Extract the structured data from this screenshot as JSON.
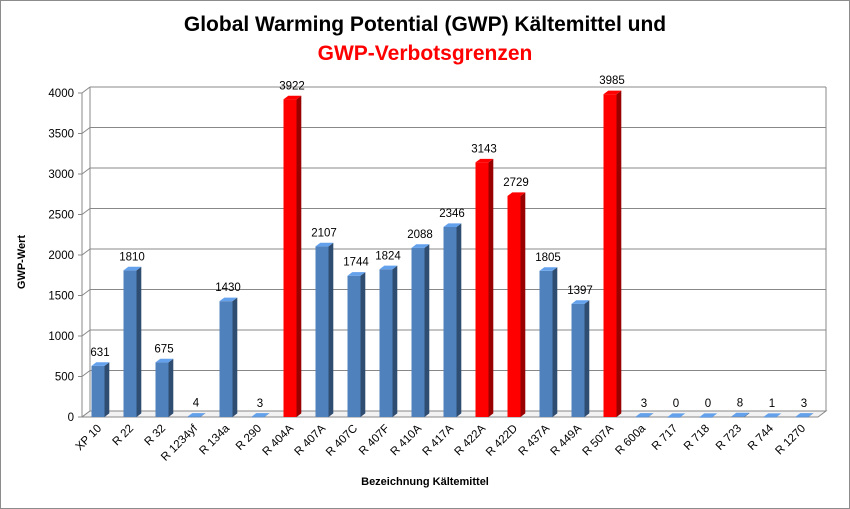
{
  "chart_data": {
    "type": "bar",
    "title": "Global Warming Potential (GWP) Kältemittel und",
    "subtitle": "GWP-Verbotsgrenzen",
    "xlabel": "Bezeichnung Kältemittel",
    "ylabel": "GWP-Wert",
    "ylim": [
      0,
      4000
    ],
    "yticks": [
      0,
      500,
      1000,
      1500,
      2000,
      2500,
      3000,
      3500,
      4000
    ],
    "grid": true,
    "categories": [
      "XP 10",
      "R 22",
      "R 32",
      "R 1234yf",
      "R 134a",
      "R 290",
      "R 404A",
      "R 407A",
      "R 407C",
      "R 407F",
      "R 410A",
      "R 417A",
      "R 422A",
      "R 422D",
      "R 437A",
      "R 449A",
      "R 507A",
      "R 600a",
      "R 717",
      "R 718",
      "R 723",
      "R 744",
      "R 1270"
    ],
    "values": [
      631,
      1810,
      675,
      4,
      1430,
      3,
      3922,
      2107,
      1744,
      1824,
      2088,
      2346,
      3143,
      2729,
      1805,
      1397,
      3985,
      3,
      0,
      0,
      8,
      1,
      3
    ],
    "highlighted": [
      false,
      false,
      false,
      false,
      false,
      false,
      true,
      false,
      false,
      false,
      false,
      false,
      true,
      true,
      false,
      false,
      true,
      false,
      false,
      false,
      false,
      false,
      false
    ],
    "colors": {
      "default_bar": "#4f81bd",
      "highlight_bar": "#ff0000",
      "subtitle": "#ff0000"
    }
  }
}
